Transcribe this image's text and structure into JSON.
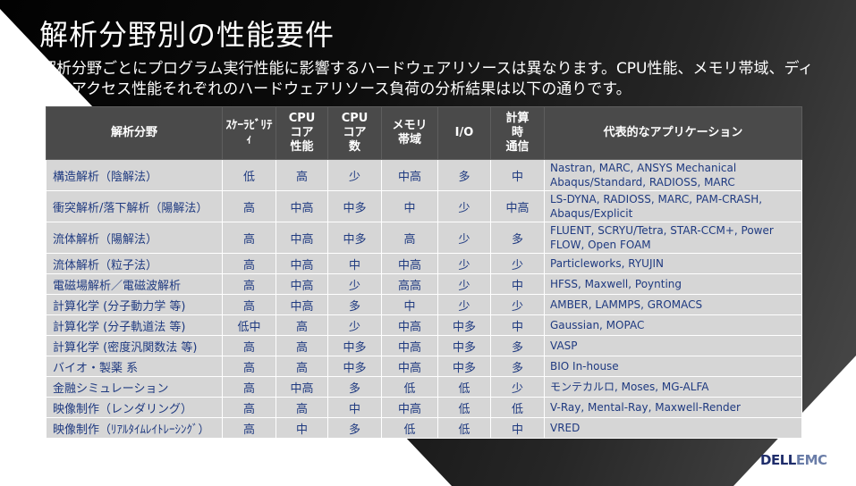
{
  "title": "解析分野別の性能要件",
  "subtitle": "解析分野ごとにプログラム実行性能に影響するハードウェアリソースは異なります。CPU性能、メモリ帯域、ディスクアクセス性能それぞれのハードウェアリソース負荷の分析結果は以下の通りです。",
  "logo": {
    "part1": "DELL",
    "part2": "EMC"
  },
  "table": {
    "headers": {
      "field": "解析分野",
      "scalability": "ｽｹｰﾗﾋﾞﾘﾃｨ",
      "cpu_core_perf": "CPU\nコア\n性能",
      "cpu_core_count": "CPU\nコア\n数",
      "mem_bw": "メモリ\n帯域",
      "io": "I/O",
      "comm": "計算\n時\n通信",
      "apps": "代表的なアプリケーション"
    },
    "rows": [
      {
        "field": "構造解析（陰解法）",
        "scal": "低",
        "core_perf": "高",
        "core_count": "少",
        "mem": "中高",
        "io": "多",
        "comm": "中",
        "apps": "Nastran, MARC, ANSYS Mechanical Abaqus/Standard, RADIOSS, MARC"
      },
      {
        "field": "衝突解析/落下解析（陽解法）",
        "scal": "高",
        "core_perf": "中高",
        "core_count": "中多",
        "mem": "中",
        "io": "少",
        "comm": "中高",
        "apps": "LS-DYNA, RADIOSS, MARC, PAM-CRASH, Abaqus/Explicit"
      },
      {
        "field": "流体解析（陽解法）",
        "scal": "高",
        "core_perf": "中高",
        "core_count": "中多",
        "mem": "高",
        "io": "少",
        "comm": "多",
        "apps": "FLUENT, SCRYU/Tetra, STAR-CCM+, Power FLOW, Open FOAM"
      },
      {
        "field": "流体解析（粒子法）",
        "scal": "高",
        "core_perf": "中高",
        "core_count": "中",
        "mem": "中高",
        "io": "少",
        "comm": "少",
        "apps": "Particleworks, RYUJIN"
      },
      {
        "field": "電磁場解析／電磁波解析",
        "scal": "高",
        "core_perf": "中高",
        "core_count": "少",
        "mem": "高高",
        "io": "少",
        "comm": "中",
        "apps": "HFSS, Maxwell, Poynting"
      },
      {
        "field": "計算化学 (分子動力学 等)",
        "scal": "高",
        "core_perf": "中高",
        "core_count": "多",
        "mem": "中",
        "io": "少",
        "comm": "少",
        "apps": "AMBER, LAMMPS, GROMACS"
      },
      {
        "field": "計算化学 (分子軌道法 等)",
        "scal": "低中",
        "core_perf": "高",
        "core_count": "少",
        "mem": "中高",
        "io": "中多",
        "comm": "中",
        "apps": "Gaussian, MOPAC"
      },
      {
        "field": "計算化学 (密度汎関数法 等)",
        "scal": "高",
        "core_perf": "高",
        "core_count": "中多",
        "mem": "中高",
        "io": "中多",
        "comm": "多",
        "apps": "VASP"
      },
      {
        "field": "バイオ・製薬 系",
        "scal": "高",
        "core_perf": "高",
        "core_count": "中多",
        "mem": "中高",
        "io": "中多",
        "comm": "多",
        "apps": "BIO In-house"
      },
      {
        "field": "金融シミュレーション",
        "scal": "高",
        "core_perf": "中高",
        "core_count": "多",
        "mem": "低",
        "io": "低",
        "comm": "少",
        "apps": "モンテカルロ, Moses, MG-ALFA"
      },
      {
        "field": "映像制作（レンダリング）",
        "scal": "高",
        "core_perf": "高",
        "core_count": "中",
        "mem": "中高",
        "io": "低",
        "comm": "低",
        "apps": "V-Ray, Mental-Ray, Maxwell-Render"
      },
      {
        "field": "映像制作（ﾘｱﾙﾀｲﾑﾚｲﾄﾚｰｼﾝｸﾞ）",
        "scal": "高",
        "core_perf": "中",
        "core_count": "多",
        "mem": "低",
        "io": "低",
        "comm": "中",
        "apps": "VRED"
      }
    ]
  }
}
